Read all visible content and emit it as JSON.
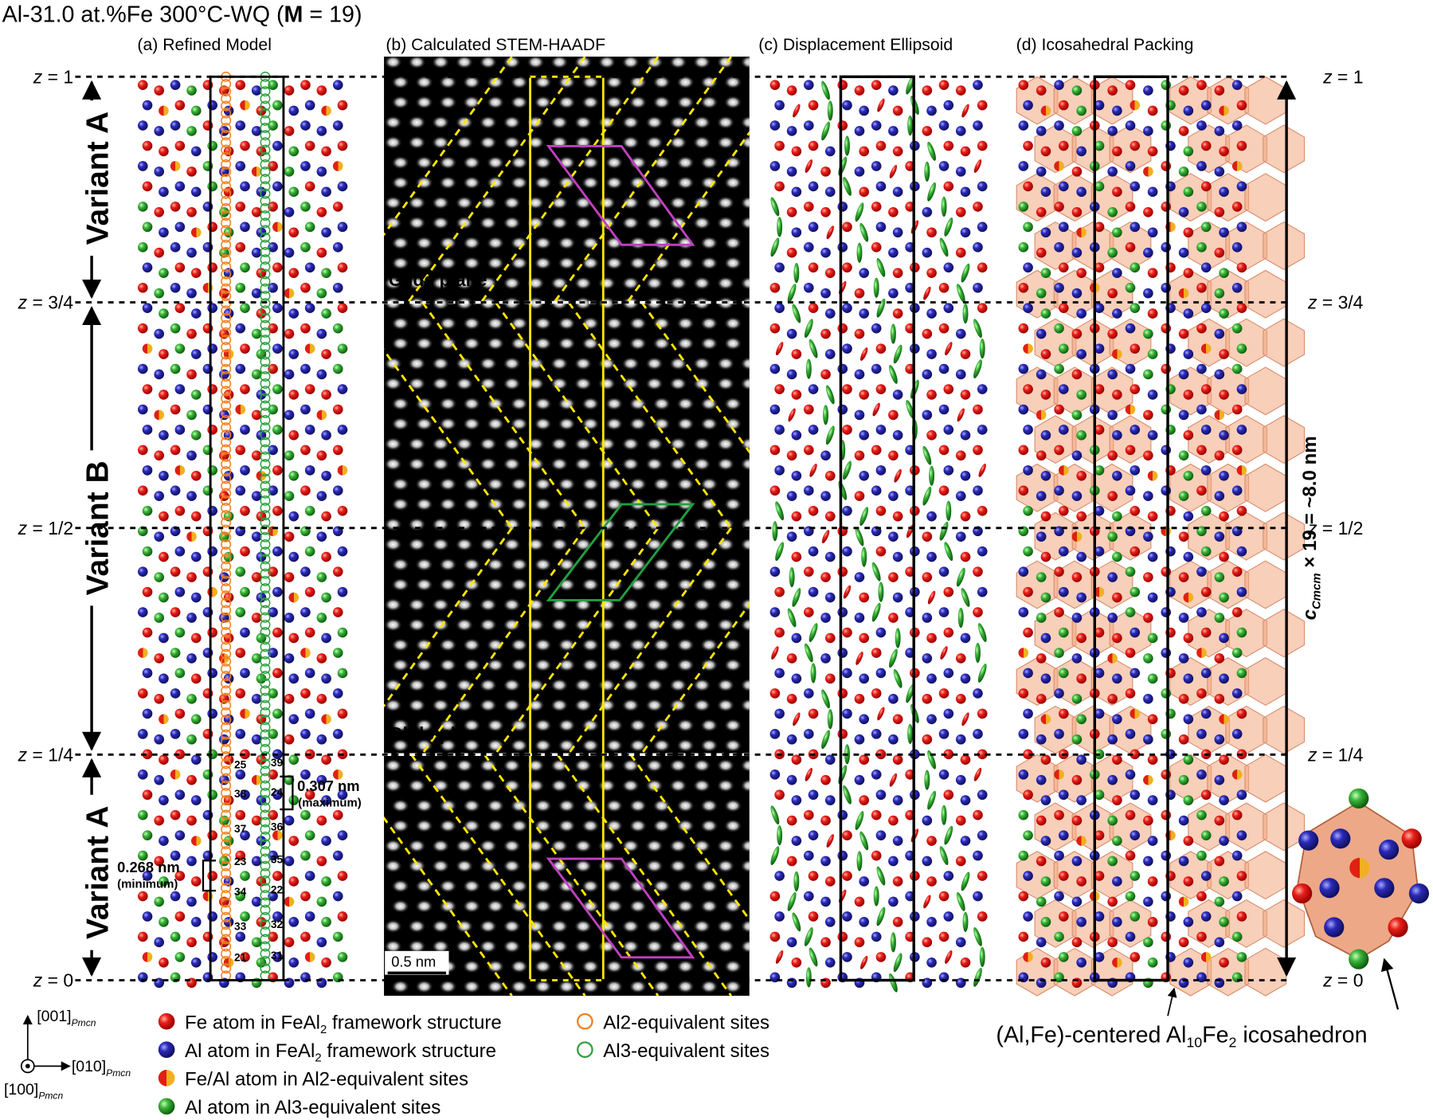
{
  "title": {
    "before": "Al-31.0 at.%Fe 300°C-WQ (",
    "bold": "M",
    "after": " = 19)"
  },
  "panels": [
    "(a) Refined Model",
    "(b) Calculated STEM-HAADF",
    "(c) Displacement Ellipsoid",
    "(d) Icosahedral Packing"
  ],
  "z_levels": [
    {
      "symbol": "z",
      "rest": " = 1"
    },
    {
      "symbol": "z",
      "rest": " = 3/4"
    },
    {
      "symbol": "z",
      "rest": " = 1/2"
    },
    {
      "symbol": "z",
      "rest": " = 1/4"
    },
    {
      "symbol": "z",
      "rest": " = 0"
    }
  ],
  "variants": [
    "Variant A",
    "Variant B",
    "Variant A"
  ],
  "glide_planes": [
    "Glide plane",
    "Glide plane"
  ],
  "site_numbers": {
    "left": [
      "25",
      "38",
      "37",
      "23",
      "34",
      "33",
      "21"
    ],
    "right": [
      "39",
      "24",
      "36",
      "35",
      "22",
      "32",
      "31"
    ]
  },
  "distances": [
    {
      "value": "0.307 nm",
      "note": "(maximum)"
    },
    {
      "value": "0.268 nm",
      "note": "(minimum)"
    }
  ],
  "scale_bar": "0.5 nm",
  "length_label": {
    "symbol": "c",
    "sub": "Cmcm",
    "rest": " × 19 = ~8.0 nm"
  },
  "legend": [
    {
      "before": "Fe atom in FeAl",
      "sub": "2",
      "after": " framework structure"
    },
    {
      "before": "Al atom in FeAl",
      "sub": "2",
      "after": " framework structure"
    },
    {
      "before": "Fe/Al atom in Al2-equivalent sites"
    },
    {
      "before": "Al atom in Al3-equivalent sites"
    },
    {
      "before": "Al2-equivalent sites"
    },
    {
      "before": "Al3-equivalent sites"
    }
  ],
  "axes": [
    {
      "text": "[001]",
      "sub": "Pmcn"
    },
    {
      "text": "[010]",
      "sub": "Pmcn"
    },
    {
      "text": "[100]",
      "sub": "Pmcn"
    }
  ],
  "caption": {
    "a": "(Al,Fe)-centered Al",
    "s1": "10",
    "b": "Fe",
    "s2": "2",
    "c": " icosahedron"
  }
}
